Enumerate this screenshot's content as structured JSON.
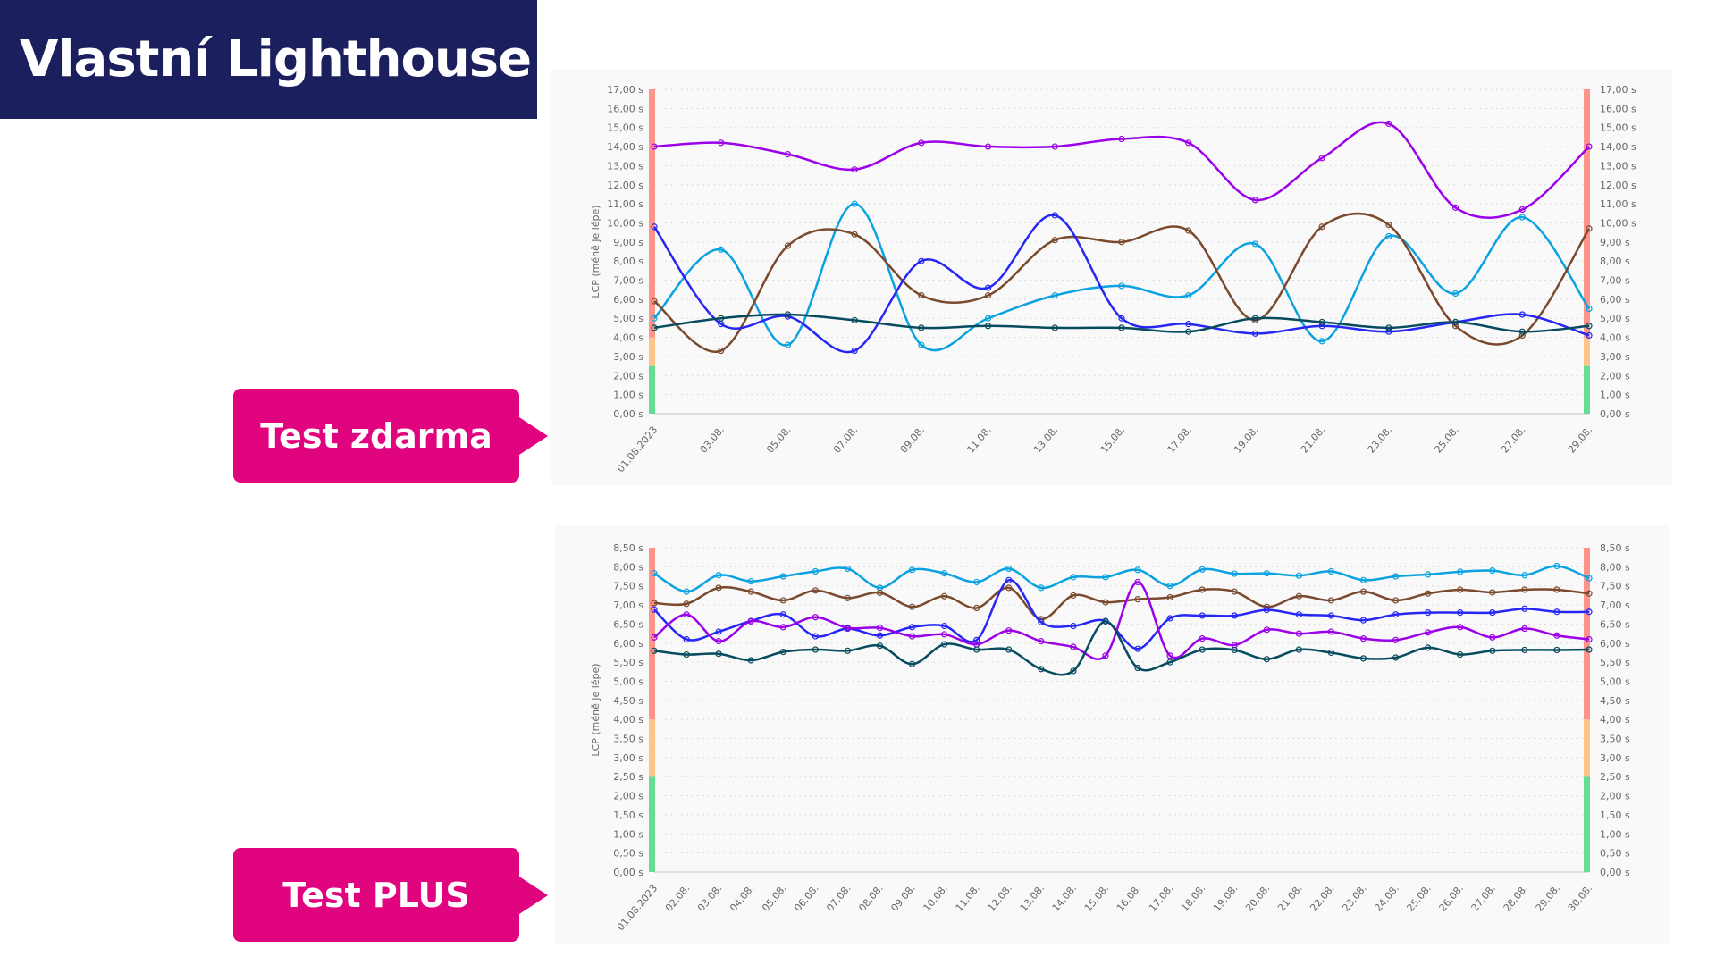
{
  "title": "Vlastní Lighthouse",
  "labels": {
    "free": "Test zdarma",
    "plus": "Test PLUS"
  },
  "colors": {
    "purple": "#9b00e8",
    "cyan": "#0aa2e0",
    "blue": "#2626f5",
    "brown": "#7a4a2e",
    "teal": "#064b5e",
    "zone_good": "#66dd93",
    "zone_mid": "#ffc58a",
    "zone_bad": "#ff958a"
  },
  "chart_data": [
    {
      "type": "line",
      "ylabel": "LCP (méně je lépe)",
      "ylim": [
        0,
        17
      ],
      "ystep": 1,
      "yunit": "s",
      "zones": [
        2.5,
        4
      ],
      "grid": true,
      "categories": [
        "01.08.2023",
        "03.08.",
        "05.08.",
        "07.08.",
        "09.08.",
        "11.08.",
        "13.08.",
        "15.08.",
        "17.08.",
        "19.08.",
        "21.08.",
        "23.08.",
        "25.08.",
        "27.08.",
        "29.08."
      ],
      "series": [
        {
          "color": "purple",
          "values": [
            14.0,
            14.2,
            13.6,
            12.8,
            14.2,
            14.0,
            14.0,
            14.4,
            14.2,
            11.2,
            13.4,
            15.2,
            10.8,
            10.7,
            14.0
          ]
        },
        {
          "color": "cyan",
          "values": [
            5.0,
            8.6,
            3.6,
            11.0,
            3.6,
            5.0,
            6.2,
            6.7,
            6.2,
            8.9,
            3.8,
            9.3,
            6.3,
            10.3,
            5.5
          ]
        },
        {
          "color": "brown",
          "values": [
            5.9,
            3.3,
            8.8,
            9.4,
            6.2,
            6.2,
            9.1,
            9.0,
            9.6,
            4.9,
            9.8,
            9.9,
            4.6,
            4.1,
            9.7
          ]
        },
        {
          "color": "blue",
          "values": [
            9.8,
            4.7,
            5.1,
            3.3,
            8.0,
            6.6,
            10.4,
            5.0,
            4.7,
            4.2,
            4.6,
            4.3,
            4.8,
            5.2,
            4.1
          ]
        },
        {
          "color": "teal",
          "values": [
            4.5,
            5.0,
            5.2,
            4.9,
            4.5,
            4.6,
            4.5,
            4.5,
            4.3,
            5.0,
            4.8,
            4.5,
            4.8,
            4.3,
            4.6
          ]
        }
      ]
    },
    {
      "type": "line",
      "ylabel": "LCP (méně je lépe)",
      "ylim": [
        0,
        8.5
      ],
      "ystep": 0.5,
      "yunit": "s",
      "zones": [
        2.5,
        4
      ],
      "grid": true,
      "categories": [
        "01.08.2023",
        "02.08.",
        "03.08.",
        "04.08.",
        "05.08.",
        "06.08.",
        "07.08.",
        "08.08.",
        "09.08.",
        "10.08.",
        "11.08.",
        "12.08.",
        "13.08.",
        "14.08.",
        "15.08.",
        "16.08.",
        "17.08.",
        "18.08.",
        "19.08.",
        "20.08.",
        "21.08.",
        "22.08.",
        "23.08.",
        "24.08.",
        "25.08.",
        "26.08.",
        "27.08.",
        "28.08.",
        "29.08.",
        "30.08."
      ],
      "series": [
        {
          "color": "cyan",
          "values": [
            7.83,
            7.35,
            7.78,
            7.62,
            7.75,
            7.88,
            7.95,
            7.45,
            7.92,
            7.83,
            7.6,
            7.95,
            7.45,
            7.73,
            7.73,
            7.92,
            7.5,
            7.93,
            7.82,
            7.83,
            7.77,
            7.88,
            7.65,
            7.75,
            7.8,
            7.87,
            7.9,
            7.78,
            8.02,
            7.7
          ]
        },
        {
          "color": "brown",
          "values": [
            7.05,
            7.03,
            7.45,
            7.35,
            7.12,
            7.38,
            7.18,
            7.32,
            6.95,
            7.23,
            6.92,
            7.45,
            6.63,
            7.25,
            7.07,
            7.15,
            7.2,
            7.4,
            7.35,
            6.95,
            7.23,
            7.12,
            7.35,
            7.12,
            7.3,
            7.4,
            7.33,
            7.4,
            7.4,
            7.3
          ]
        },
        {
          "color": "blue",
          "values": [
            6.88,
            6.1,
            6.3,
            6.58,
            6.75,
            6.18,
            6.38,
            6.2,
            6.42,
            6.45,
            6.08,
            7.65,
            6.55,
            6.45,
            6.58,
            5.85,
            6.65,
            6.72,
            6.72,
            6.87,
            6.75,
            6.72,
            6.6,
            6.75,
            6.8,
            6.8,
            6.8,
            6.9,
            6.82,
            6.82
          ]
        },
        {
          "color": "purple",
          "values": [
            6.15,
            6.75,
            6.05,
            6.57,
            6.42,
            6.68,
            6.4,
            6.4,
            6.18,
            6.23,
            5.97,
            6.33,
            6.05,
            5.9,
            5.67,
            7.6,
            5.67,
            6.12,
            5.95,
            6.35,
            6.25,
            6.3,
            6.12,
            6.08,
            6.28,
            6.42,
            6.15,
            6.38,
            6.2,
            6.1
          ]
        },
        {
          "color": "teal",
          "values": [
            5.8,
            5.7,
            5.72,
            5.55,
            5.77,
            5.83,
            5.8,
            5.93,
            5.45,
            5.97,
            5.83,
            5.83,
            5.32,
            5.27,
            6.57,
            5.35,
            5.5,
            5.83,
            5.82,
            5.58,
            5.83,
            5.75,
            5.6,
            5.62,
            5.88,
            5.7,
            5.8,
            5.82,
            5.82,
            5.83
          ]
        }
      ]
    }
  ]
}
